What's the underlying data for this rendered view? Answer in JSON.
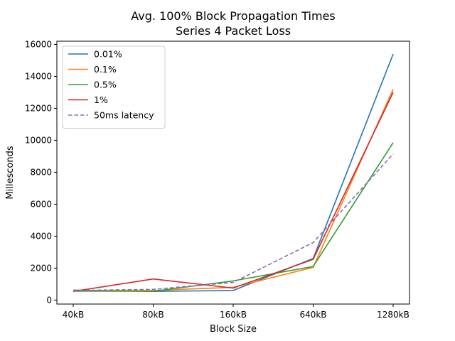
{
  "chart_data": {
    "type": "line",
    "title": "Avg. 100% Block Propagation Times",
    "subtitle": "Series 4 Packet Loss",
    "xlabel": "Block Size",
    "ylabel": "Millesconds",
    "categories": [
      "40kB",
      "80kB",
      "160kB",
      "640kB",
      "1280kB"
    ],
    "yticks": [
      0,
      2000,
      4000,
      6000,
      8000,
      10000,
      12000,
      14000,
      16000
    ],
    "ylim": [
      -250,
      16200
    ],
    "grid": false,
    "legend_position": "top-left",
    "series": [
      {
        "name": "0.01%",
        "color": "#1f77b4",
        "dash": false,
        "values": [
          620,
          540,
          600,
          2600,
          15400
        ]
      },
      {
        "name": "0.1%",
        "color": "#ff7f0e",
        "dash": false,
        "values": [
          580,
          600,
          800,
          2050,
          13200
        ]
      },
      {
        "name": "0.5%",
        "color": "#2ca02c",
        "dash": false,
        "values": [
          560,
          550,
          1200,
          2100,
          9850
        ]
      },
      {
        "name": "1%",
        "color": "#d62728",
        "dash": false,
        "values": [
          540,
          1320,
          750,
          2550,
          13000
        ]
      },
      {
        "name": "50ms latency",
        "color": "#9467bd",
        "dash": true,
        "values": [
          600,
          670,
          1100,
          3600,
          9150
        ]
      }
    ]
  }
}
